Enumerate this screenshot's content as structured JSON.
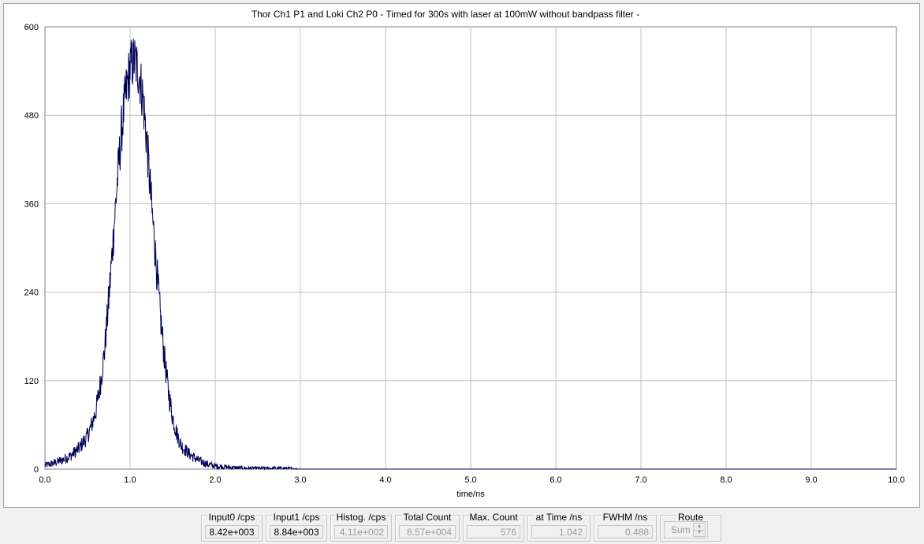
{
  "chart_data": {
    "type": "line",
    "title": "Thor Ch1 P1 and Loki Ch2 P0 - Timed for 300s with laser at 100mW without bandpass filter -",
    "xlabel": "time/ns",
    "ylabel": "",
    "xlim": [
      0.0,
      10.0
    ],
    "ylim": [
      0,
      600
    ],
    "x_ticks": [
      "0.0",
      "1.0",
      "2.0",
      "3.0",
      "4.0",
      "5.0",
      "6.0",
      "7.0",
      "8.0",
      "9.0",
      "10.0"
    ],
    "y_ticks": [
      "0",
      "120",
      "240",
      "360",
      "480",
      "600"
    ],
    "grid": true,
    "line_color": "#000055",
    "series": [
      {
        "x": [
          0.0,
          0.1,
          0.2,
          0.3,
          0.4,
          0.5,
          0.55,
          0.6,
          0.65,
          0.7,
          0.75,
          0.8,
          0.85,
          0.9,
          0.95,
          1.0,
          1.05,
          1.1,
          1.15,
          1.2,
          1.25,
          1.3,
          1.35,
          1.4,
          1.45,
          1.5,
          1.55,
          1.6,
          1.7,
          1.8,
          1.9,
          2.0,
          2.2,
          2.4,
          2.6,
          2.8,
          3.0,
          4.0,
          5.0,
          6.0,
          7.0,
          8.0,
          9.0,
          10.0
        ],
        "y": [
          5,
          8,
          12,
          18,
          28,
          45,
          60,
          80,
          115,
          160,
          230,
          310,
          390,
          460,
          510,
          545,
          555,
          540,
          505,
          440,
          360,
          290,
          215,
          155,
          105,
          70,
          48,
          32,
          20,
          12,
          7,
          4,
          2,
          1,
          1,
          1,
          0,
          0,
          0,
          0,
          0,
          0,
          0,
          0
        ]
      }
    ]
  },
  "status_bar": {
    "input0": {
      "label": "Input0 /cps",
      "value": "8.42e+003"
    },
    "input1": {
      "label": "Input1 /cps",
      "value": "8.84e+003"
    },
    "histog": {
      "label": "Histog. /cps",
      "value": "4.11e+002"
    },
    "total_count": {
      "label": "Total Count",
      "value": "8.57e+004"
    },
    "max_count": {
      "label": "Max. Count",
      "value": "576"
    },
    "at_time": {
      "label": "at Time /ns",
      "value": "1.042"
    },
    "fwhm": {
      "label": "FWHM  /ns",
      "value": "0.488"
    },
    "route": {
      "label": "Route",
      "value": "Sum"
    }
  }
}
